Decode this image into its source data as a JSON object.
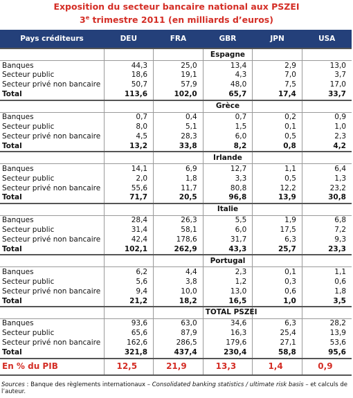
{
  "title": {
    "line1": "Exposition du secteur bancaire national aux PSZEI",
    "line2": {
      "number": "3",
      "sup": "e",
      "rest": " trimestre 2011 (en milliards d’euros)"
    }
  },
  "table": {
    "columns": [
      "Pays créditeurs",
      "DEU",
      "FRA",
      "GBR",
      "JPN",
      "USA"
    ],
    "sections": [
      {
        "name": "Espagne",
        "rows": [
          [
            "Banques",
            "44,3",
            "25,0",
            "13,4",
            "2,9",
            "13,0"
          ],
          [
            "Secteur public",
            "18,6",
            "19,1",
            "4,3",
            "7,0",
            "3,7"
          ],
          [
            "Secteur privé non bancaire",
            "50,7",
            "57,9",
            "48,0",
            "7,5",
            "17,0"
          ],
          [
            "Total",
            "113,6",
            "102,0",
            "65,7",
            "17,4",
            "33,7"
          ]
        ]
      },
      {
        "name": "Grèce",
        "rows": [
          [
            "Banques",
            "0,7",
            "0,4",
            "0,7",
            "0,2",
            "0,9"
          ],
          [
            "Secteur public",
            "8,0",
            "5,1",
            "1,5",
            "0,1",
            "1,0"
          ],
          [
            "Secteur privé non bancaire",
            "4,5",
            "28,3",
            "6,0",
            "0,5",
            "2,3"
          ],
          [
            "Total",
            "13,2",
            "33,8",
            "8,2",
            "0,8",
            "4,2"
          ]
        ]
      },
      {
        "name": "Irlande",
        "rows": [
          [
            "Banques",
            "14,1",
            "6,9",
            "12,7",
            "1,1",
            "6,4"
          ],
          [
            "Secteur public",
            "2,0",
            "1,8",
            "3,3",
            "0,5",
            "1,3"
          ],
          [
            "Secteur privé non bancaire",
            "55,6",
            "11,7",
            "80,8",
            "12,2",
            "23,2"
          ],
          [
            "Total",
            "71,7",
            "20,5",
            "96,8",
            "13,9",
            "30,8"
          ]
        ]
      },
      {
        "name": "Italie",
        "rows": [
          [
            "Banques",
            "28,4",
            "26,3",
            "5,5",
            "1,9",
            "6,8"
          ],
          [
            "Secteur public",
            "31,4",
            "58,1",
            "6,0",
            "17,5",
            "7,2"
          ],
          [
            "Secteur privé non bancaire",
            "42,4",
            "178,6",
            "31,7",
            "6,3",
            "9,3"
          ],
          [
            "Total",
            "102,1",
            "262,9",
            "43,3",
            "25,7",
            "23,3"
          ]
        ]
      },
      {
        "name": "Portugal",
        "rows": [
          [
            "Banques",
            "6,2",
            "4,4",
            "2,3",
            "0,1",
            "1,1"
          ],
          [
            "Secteur public",
            "5,6",
            "3,8",
            "1,2",
            "0,3",
            "0,6"
          ],
          [
            "Secteur privé non bancaire",
            "9,4",
            "10,0",
            "13,0",
            "0,6",
            "1,8"
          ],
          [
            "Total",
            "21,2",
            "18,2",
            "16,5",
            "1,0",
            "3,5"
          ]
        ]
      },
      {
        "name": "TOTAL PSZEI",
        "rows": [
          [
            "Banques",
            "93,6",
            "63,0",
            "34,6",
            "6,3",
            "28,2"
          ],
          [
            "Secteur public",
            "65,6",
            "87,9",
            "16,3",
            "25,4",
            "13,9"
          ],
          [
            "Secteur privé non bancaire",
            "162,6",
            "286,5",
            "179,6",
            "27,1",
            "53,6"
          ],
          [
            "Total",
            "321,8",
            "437,4",
            "230,4",
            "58,8",
            "95,6"
          ]
        ]
      }
    ],
    "footer_row": [
      "En % du PIB",
      "12,5",
      "21,9",
      "13,3",
      "1,4",
      "0,9"
    ]
  },
  "source": {
    "label": "Sources",
    "text1": " : Banque des règlements internationaux  – ",
    "italic": "Consolidated banking statistics / ultimate risk basis",
    "text2": "  – et calculs de l’auteur."
  }
}
